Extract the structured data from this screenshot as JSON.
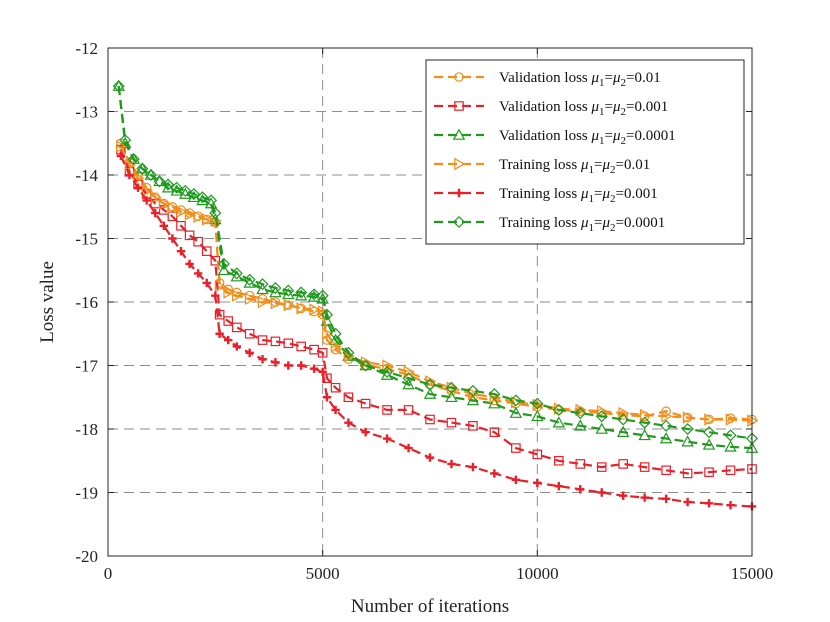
{
  "chart_data": {
    "type": "line",
    "xlabel": "Number of iterations",
    "ylabel": "Loss value",
    "xlim": [
      0,
      15000
    ],
    "ylim": [
      -20,
      -12
    ],
    "xticks": [
      "0",
      "5000",
      "10000",
      "15000"
    ],
    "yticks": [
      "-12",
      "-13",
      "-14",
      "-15",
      "-16",
      "-17",
      "-18",
      "-19",
      "-20"
    ],
    "grid": true,
    "legend_position": "top-right",
    "series": [
      {
        "name": "Validation loss μ1=μ2=0.01",
        "legend": {
          "base": "Validation loss ",
          "sym": "μ",
          "sub1": "1",
          "eq": "=",
          "sub2": "2",
          "val": "=0.01"
        },
        "color": "#f28e1c",
        "marker": "circle",
        "x": [
          300,
          500,
          700,
          900,
          1100,
          1300,
          1500,
          1700,
          1900,
          2100,
          2300,
          2500,
          2600,
          2800,
          3000,
          3300,
          3600,
          3900,
          4200,
          4500,
          4800,
          5000,
          5100,
          5300,
          5600,
          6000,
          6500,
          7000,
          7500,
          8000,
          8500,
          9000,
          9500,
          10000,
          10500,
          11000,
          11500,
          12000,
          12500,
          13000,
          13500,
          14000,
          14500,
          15000
        ],
        "y": [
          -13.5,
          -13.8,
          -14.0,
          -14.2,
          -14.35,
          -14.45,
          -14.5,
          -14.55,
          -14.6,
          -14.65,
          -14.7,
          -14.75,
          -15.7,
          -15.8,
          -15.85,
          -15.9,
          -15.95,
          -16.0,
          -16.05,
          -16.1,
          -16.15,
          -16.2,
          -16.6,
          -16.75,
          -16.9,
          -17.0,
          -17.05,
          -17.15,
          -17.3,
          -17.4,
          -17.5,
          -17.55,
          -17.6,
          -17.65,
          -17.7,
          -17.72,
          -17.75,
          -17.78,
          -17.8,
          -17.72,
          -17.82,
          -17.85,
          -17.83,
          -17.85
        ]
      },
      {
        "name": "Validation loss μ1=μ2=0.001",
        "legend": {
          "base": "Validation loss ",
          "sym": "μ",
          "sub1": "1",
          "eq": "=",
          "sub2": "2",
          "val": "=0.001"
        },
        "color": "#e8202a",
        "marker": "square",
        "x": [
          300,
          500,
          700,
          900,
          1100,
          1300,
          1500,
          1700,
          1900,
          2100,
          2300,
          2500,
          2600,
          2800,
          3000,
          3300,
          3600,
          3900,
          4200,
          4500,
          4800,
          5000,
          5100,
          5300,
          5600,
          6000,
          6500,
          7000,
          7500,
          8000,
          8500,
          9000,
          9500,
          10000,
          10500,
          11000,
          11500,
          12000,
          12500,
          13000,
          13500,
          14000,
          14500,
          15000
        ],
        "y": [
          -13.6,
          -13.95,
          -14.15,
          -14.3,
          -14.45,
          -14.55,
          -14.65,
          -14.8,
          -14.95,
          -15.05,
          -15.2,
          -15.35,
          -16.2,
          -16.3,
          -16.4,
          -16.5,
          -16.6,
          -16.62,
          -16.65,
          -16.7,
          -16.75,
          -16.8,
          -17.2,
          -17.35,
          -17.5,
          -17.6,
          -17.7,
          -17.7,
          -17.85,
          -17.9,
          -17.95,
          -18.05,
          -18.3,
          -18.4,
          -18.5,
          -18.55,
          -18.6,
          -18.55,
          -18.6,
          -18.65,
          -18.7,
          -18.68,
          -18.65,
          -18.63
        ]
      },
      {
        "name": "Validation loss μ1=μ2=0.0001",
        "legend": {
          "base": "Validation loss ",
          "sym": "μ",
          "sub1": "1",
          "eq": "=",
          "sub2": "2",
          "val": "=0.0001"
        },
        "color": "#1f9a1f",
        "marker": "triangle",
        "x": [
          250,
          400,
          600,
          800,
          1000,
          1200,
          1400,
          1600,
          1800,
          2000,
          2200,
          2400,
          2500,
          2700,
          3000,
          3300,
          3600,
          3900,
          4200,
          4500,
          4800,
          5000,
          5100,
          5300,
          5600,
          6000,
          6500,
          7000,
          7500,
          8000,
          8500,
          9000,
          9500,
          10000,
          10500,
          11000,
          11500,
          12000,
          12500,
          13000,
          13500,
          14000,
          14500,
          15000
        ],
        "y": [
          -12.6,
          -13.5,
          -13.75,
          -13.9,
          -14.0,
          -14.1,
          -14.2,
          -14.25,
          -14.3,
          -14.35,
          -14.4,
          -14.45,
          -14.7,
          -15.5,
          -15.6,
          -15.7,
          -15.8,
          -15.85,
          -15.88,
          -15.9,
          -15.92,
          -15.95,
          -16.3,
          -16.6,
          -16.85,
          -17.0,
          -17.15,
          -17.3,
          -17.45,
          -17.5,
          -17.55,
          -17.6,
          -17.75,
          -17.8,
          -17.9,
          -17.95,
          -18.0,
          -18.05,
          -18.1,
          -18.15,
          -18.2,
          -18.25,
          -18.28,
          -18.3
        ]
      },
      {
        "name": "Training loss μ1=μ2=0.01",
        "legend": {
          "base": "Training loss ",
          "sym": "μ",
          "sub1": "1",
          "eq": "=",
          "sub2": "2",
          "val": "=0.01"
        },
        "color": "#f28e1c",
        "marker": "triangle-right",
        "x": [
          300,
          500,
          700,
          900,
          1100,
          1300,
          1500,
          1700,
          1900,
          2100,
          2300,
          2500,
          2600,
          2800,
          3000,
          3300,
          3600,
          3900,
          4200,
          4500,
          4800,
          5000,
          5100,
          5300,
          5600,
          6000,
          6500,
          7000,
          7500,
          8000,
          8500,
          9000,
          9500,
          10000,
          10500,
          11000,
          11500,
          12000,
          12500,
          13000,
          13500,
          14000,
          14500,
          15000
        ],
        "y": [
          -13.55,
          -13.85,
          -14.05,
          -14.25,
          -14.35,
          -14.45,
          -14.52,
          -14.58,
          -14.62,
          -14.66,
          -14.7,
          -14.72,
          -15.75,
          -15.85,
          -15.9,
          -15.95,
          -16.0,
          -16.02,
          -16.05,
          -16.1,
          -16.12,
          -16.15,
          -16.5,
          -16.7,
          -16.85,
          -16.95,
          -17.0,
          -17.1,
          -17.25,
          -17.35,
          -17.45,
          -17.5,
          -17.58,
          -17.62,
          -17.68,
          -17.7,
          -17.72,
          -17.75,
          -17.78,
          -17.8,
          -17.82,
          -17.85,
          -17.85,
          -17.87
        ]
      },
      {
        "name": "Training loss μ1=μ2=0.001",
        "legend": {
          "base": "Training loss ",
          "sym": "μ",
          "sub1": "1",
          "eq": "=",
          "sub2": "2",
          "val": "=0.001"
        },
        "color": "#e8202a",
        "marker": "plus",
        "x": [
          300,
          500,
          700,
          900,
          1100,
          1300,
          1500,
          1700,
          1900,
          2100,
          2300,
          2500,
          2600,
          2800,
          3000,
          3300,
          3600,
          3900,
          4200,
          4500,
          4800,
          5000,
          5100,
          5300,
          5600,
          6000,
          6500,
          7000,
          7500,
          8000,
          8500,
          9000,
          9500,
          10000,
          10500,
          11000,
          11500,
          12000,
          12500,
          13000,
          13500,
          14000,
          14500,
          15000
        ],
        "y": [
          -13.7,
          -14.0,
          -14.2,
          -14.4,
          -14.6,
          -14.8,
          -15.0,
          -15.2,
          -15.4,
          -15.55,
          -15.7,
          -15.9,
          -16.5,
          -16.6,
          -16.7,
          -16.8,
          -16.9,
          -16.95,
          -17.0,
          -17.0,
          -17.05,
          -17.1,
          -17.5,
          -17.7,
          -17.9,
          -18.05,
          -18.15,
          -18.3,
          -18.45,
          -18.55,
          -18.6,
          -18.7,
          -18.8,
          -18.85,
          -18.9,
          -18.95,
          -19.0,
          -19.05,
          -19.08,
          -19.1,
          -19.15,
          -19.17,
          -19.2,
          -19.22
        ]
      },
      {
        "name": "Training loss μ1=μ2=0.0001",
        "legend": {
          "base": "Training loss ",
          "sym": "μ",
          "sub1": "1",
          "eq": "=",
          "sub2": "2",
          "val": "=0.0001"
        },
        "color": "#1f9a1f",
        "marker": "diamond",
        "x": [
          250,
          400,
          600,
          800,
          1000,
          1200,
          1400,
          1600,
          1800,
          2000,
          2200,
          2400,
          2500,
          2700,
          3000,
          3300,
          3600,
          3900,
          4200,
          4500,
          4800,
          5000,
          5100,
          5300,
          5600,
          6000,
          6500,
          7000,
          7500,
          8000,
          8500,
          9000,
          9500,
          10000,
          10500,
          11000,
          11500,
          12000,
          12500,
          13000,
          13500,
          14000,
          14500,
          15000
        ],
        "y": [
          -12.6,
          -13.45,
          -13.75,
          -13.9,
          -14.0,
          -14.1,
          -14.15,
          -14.2,
          -14.25,
          -14.3,
          -14.35,
          -14.4,
          -14.6,
          -15.4,
          -15.55,
          -15.65,
          -15.72,
          -15.78,
          -15.82,
          -15.85,
          -15.88,
          -15.9,
          -16.2,
          -16.5,
          -16.8,
          -17.0,
          -17.1,
          -17.2,
          -17.3,
          -17.35,
          -17.4,
          -17.45,
          -17.55,
          -17.6,
          -17.7,
          -17.75,
          -17.8,
          -17.85,
          -17.9,
          -17.95,
          -18.0,
          -18.05,
          -18.1,
          -18.15
        ]
      }
    ]
  }
}
